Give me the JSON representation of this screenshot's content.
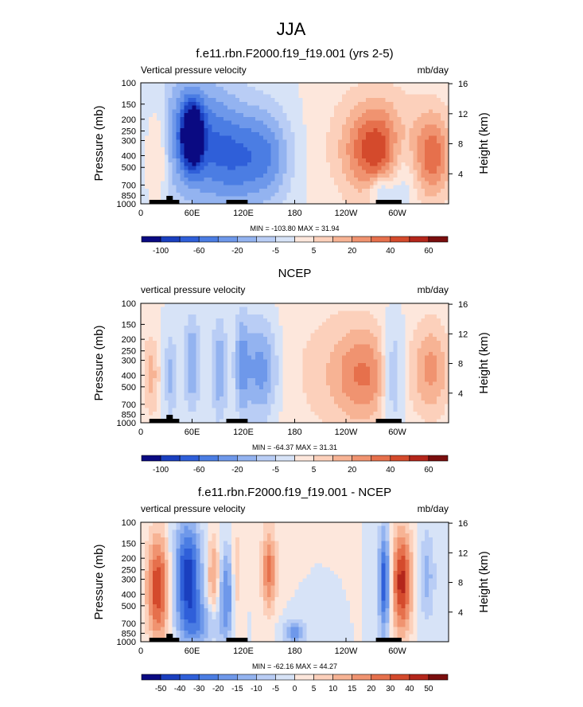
{
  "page_title": "JJA",
  "chart_data": [
    {
      "type": "heatmap",
      "title": "f.e11.rbn.F2000.f19_f19.001 (yrs 2-5)",
      "left_label": "Vertical pressure velocity",
      "right_label": "mb/day",
      "ylabel": "Pressure (mb)",
      "ylabel_right": "Height (km)",
      "x_ticks": [
        "0",
        "60E",
        "120E",
        "180",
        "120W",
        "60W"
      ],
      "y_ticks": [
        "100",
        "150",
        "200",
        "250",
        "300",
        "400",
        "500",
        "700",
        "850",
        "1000"
      ],
      "y_ticks_right": [
        "4",
        "8",
        "12",
        "16"
      ],
      "xlim": [
        0,
        360
      ],
      "ylim": [
        1000,
        100
      ],
      "min_max": "MIN = -103.80  MAX =  31.94",
      "colorbar_labels": [
        "-100",
        "-60",
        "-20",
        "-5",
        "5",
        "20",
        "40",
        "60"
      ],
      "colorbar_colors": [
        "#0a0a82",
        "#1a3fbf",
        "#2f5fd9",
        "#4b7de3",
        "#6e98ea",
        "#93b3f0",
        "#b9cdf5",
        "#d7e3f7",
        "#fde7dc",
        "#fcd0bb",
        "#f7b394",
        "#f09370",
        "#e6704c",
        "#d44a2c",
        "#b4261b",
        "#7a0e0e"
      ]
    },
    {
      "type": "heatmap",
      "title": "NCEP",
      "left_label": "vertical pressure velocity",
      "right_label": "mb/day",
      "ylabel": "Pressure (mb)",
      "ylabel_right": "Height (km)",
      "x_ticks": [
        "0",
        "60E",
        "120E",
        "180",
        "120W",
        "60W"
      ],
      "y_ticks": [
        "100",
        "150",
        "200",
        "250",
        "300",
        "400",
        "500",
        "700",
        "850",
        "1000"
      ],
      "y_ticks_right": [
        "4",
        "8",
        "12",
        "16"
      ],
      "xlim": [
        0,
        360
      ],
      "ylim": [
        1000,
        100
      ],
      "min_max": "MIN = -64.37  MAX =  31.31",
      "colorbar_labels": [
        "-100",
        "-60",
        "-20",
        "-5",
        "5",
        "20",
        "40",
        "60"
      ],
      "colorbar_colors": [
        "#0a0a82",
        "#1a3fbf",
        "#2f5fd9",
        "#4b7de3",
        "#6e98ea",
        "#93b3f0",
        "#b9cdf5",
        "#d7e3f7",
        "#fde7dc",
        "#fcd0bb",
        "#f7b394",
        "#f09370",
        "#e6704c",
        "#d44a2c",
        "#b4261b",
        "#7a0e0e"
      ]
    },
    {
      "type": "heatmap",
      "title": "f.e11.rbn.F2000.f19_f19.001 - NCEP",
      "left_label": "vertical pressure velocity",
      "right_label": "mb/day",
      "ylabel": "Pressure (mb)",
      "ylabel_right": "Height (km)",
      "x_ticks": [
        "0",
        "60E",
        "120E",
        "180",
        "120W",
        "60W"
      ],
      "y_ticks": [
        "100",
        "150",
        "200",
        "250",
        "300",
        "400",
        "500",
        "700",
        "850",
        "1000"
      ],
      "y_ticks_right": [
        "4",
        "8",
        "12",
        "16"
      ],
      "xlim": [
        0,
        360
      ],
      "ylim": [
        1000,
        100
      ],
      "min_max": "MIN = -62.16  MAX =  44.27",
      "colorbar_labels": [
        "-50",
        "-40",
        "-30",
        "-20",
        "-15",
        "-10",
        "-5",
        "0",
        "5",
        "10",
        "15",
        "20",
        "30",
        "40",
        "50"
      ],
      "colorbar_colors": [
        "#0a0a82",
        "#1a3fbf",
        "#2f5fd9",
        "#4b7de3",
        "#6e98ea",
        "#93b3f0",
        "#b9cdf5",
        "#d7e3f7",
        "#fde7dc",
        "#fcd0bb",
        "#f7b394",
        "#f09370",
        "#e6704c",
        "#d44a2c",
        "#b4261b",
        "#7a0e0e"
      ]
    }
  ]
}
